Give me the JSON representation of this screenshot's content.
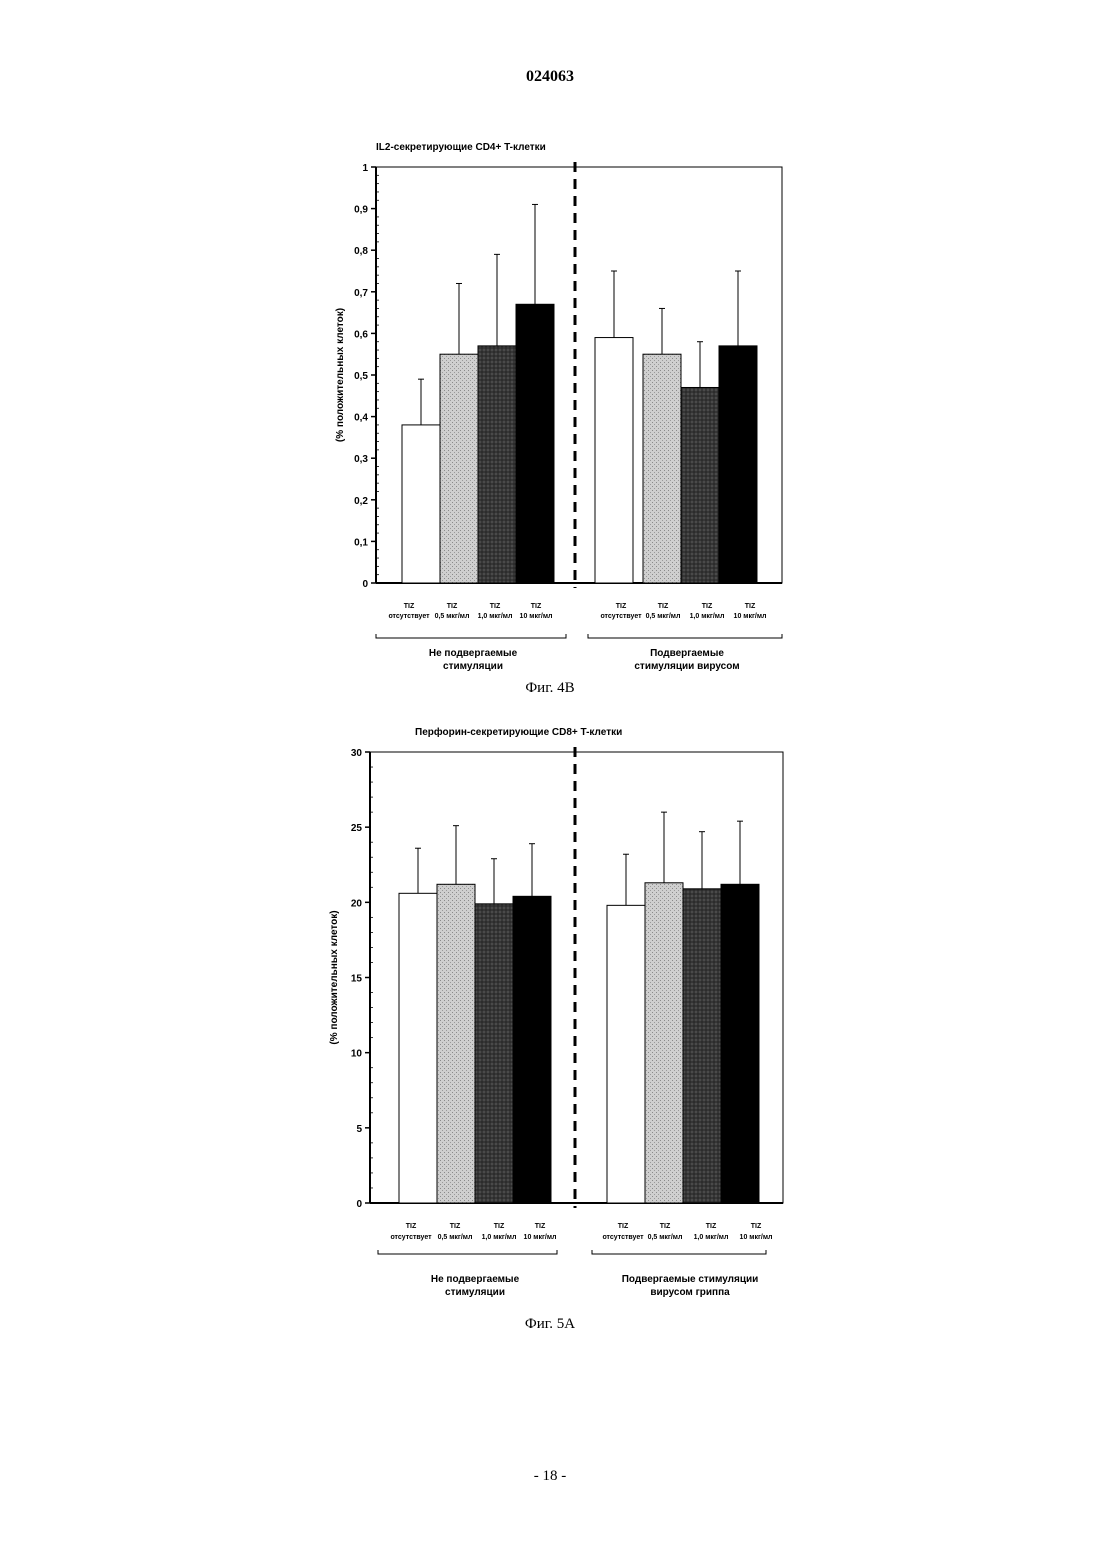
{
  "document": {
    "number": "024063",
    "page_label": "- 18 -"
  },
  "patterns": {
    "white": "#ffffff",
    "light_stipple": "#cfcfcf",
    "dark_crosshatch": "#4a4a4a",
    "black": "#000000"
  },
  "chart_data": [
    {
      "type": "bar",
      "caption": "Фиг. 4В",
      "title": "IL2-секретирующие CD4+ T-клетки",
      "ylabel": "(% положительных клеток)",
      "ylim": [
        0,
        1
      ],
      "yticks": [
        "0",
        "0,1",
        "0,2",
        "0,3",
        "0,4",
        "0,5",
        "0,6",
        "0,7",
        "0,8",
        "0,9",
        "1"
      ],
      "categories": [
        [
          "TIZ",
          "отсутствует"
        ],
        [
          "TIZ",
          "0,5 мкг/мл"
        ],
        [
          "TIZ",
          "1,0 мкг/мл"
        ],
        [
          "TIZ",
          "10 мкг/мл"
        ],
        [
          "TIZ",
          "отсутствует"
        ],
        [
          "TIZ",
          "0,5 мкг/мл"
        ],
        [
          "TIZ",
          "1,0 мкг/мл"
        ],
        [
          "TIZ",
          "10 мкг/мл"
        ]
      ],
      "groups": [
        {
          "label": [
            "Не подвергаемые",
            "стимуляции"
          ]
        },
        {
          "label": [
            "Подвергаемые",
            "стимуляции вирусом"
          ]
        }
      ],
      "values": [
        0.38,
        0.55,
        0.57,
        0.67,
        0.59,
        0.55,
        0.47,
        0.57
      ],
      "errors": [
        0.11,
        0.17,
        0.22,
        0.24,
        0.16,
        0.11,
        0.11,
        0.18
      ],
      "fills": [
        "white",
        "light_stipple",
        "dark_crosshatch",
        "black",
        "white",
        "light_stipple",
        "dark_crosshatch",
        "black"
      ]
    },
    {
      "type": "bar",
      "caption": "Фиг. 5А",
      "title": "Перфорин-секретирующие CD8+ T-клетки",
      "ylabel": "(% положительных клеток)",
      "ylim": [
        0,
        30
      ],
      "yticks": [
        "0",
        "5",
        "10",
        "15",
        "20",
        "25",
        "30"
      ],
      "categories": [
        [
          "TIZ",
          "отсутствует"
        ],
        [
          "TIZ",
          "0,5 мкг/мл"
        ],
        [
          "TIZ",
          "1,0 мкг/мл"
        ],
        [
          "TIZ",
          "10 мкг/мл"
        ],
        [
          "TIZ",
          "отсутствует"
        ],
        [
          "TIZ",
          "0,5 мкг/мл"
        ],
        [
          "TIZ",
          "1,0 мкг/мл"
        ],
        [
          "TIZ",
          "10 мкг/мл"
        ]
      ],
      "groups": [
        {
          "label": [
            "Не подвергаемые",
            "стимуляции"
          ]
        },
        {
          "label": [
            "Подвергаемые стимуляции",
            "вирусом гриппа"
          ]
        }
      ],
      "values": [
        20.6,
        21.2,
        19.9,
        20.4,
        19.8,
        21.3,
        20.9,
        21.2
      ],
      "errors": [
        3.0,
        3.9,
        3.0,
        3.5,
        3.4,
        4.7,
        3.8,
        4.2
      ],
      "fills": [
        "white",
        "light_stipple",
        "dark_crosshatch",
        "black",
        "white",
        "light_stipple",
        "dark_crosshatch",
        "black"
      ]
    }
  ]
}
